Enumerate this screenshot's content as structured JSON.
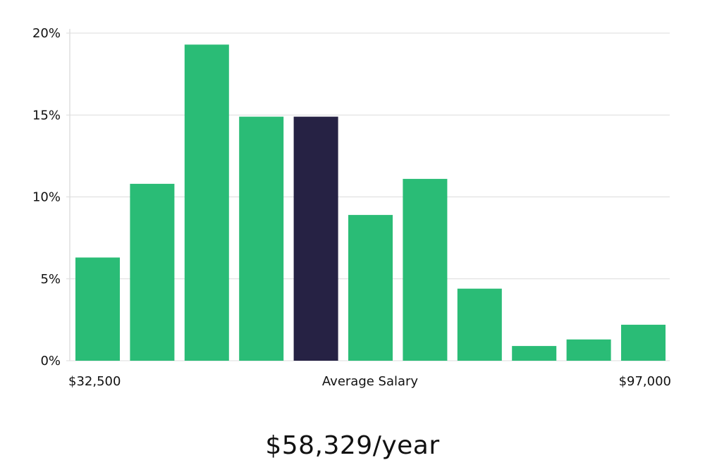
{
  "chart_data": {
    "type": "bar",
    "title": "",
    "xlabel": "Average Salary",
    "ylabel": "",
    "x_min_label": "$32,500",
    "x_max_label": "$97,000",
    "ylim": [
      0,
      20
    ],
    "yticks": [
      0,
      5,
      10,
      15,
      20
    ],
    "ytick_labels": [
      "0%",
      "5%",
      "10%",
      "15%",
      "20%"
    ],
    "grid": true,
    "values": [
      6.3,
      10.8,
      19.3,
      14.9,
      14.9,
      8.9,
      11.1,
      4.4,
      0.9,
      1.3,
      2.2
    ],
    "highlight_index": 4,
    "bar_color": "#2abc76",
    "highlight_color": "#262244"
  },
  "summary": {
    "salary_text": "$58,329/year"
  }
}
